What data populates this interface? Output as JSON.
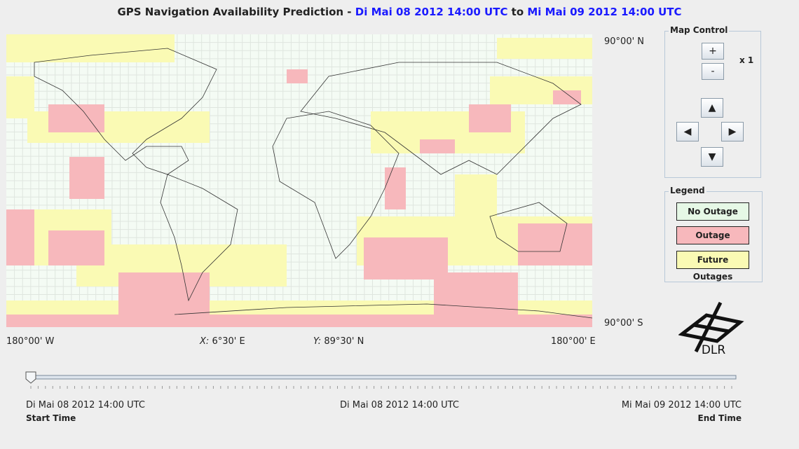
{
  "title": {
    "text": "GPS Navigation Availability Prediction - ",
    "start": "Di Mai 08 2012 14:00 UTC",
    "to": " to ",
    "end": "Mi Mai 09 2012 14:00 UTC"
  },
  "map": {
    "lat_top": "90°00' N",
    "lat_bottom": "90°00' S",
    "lon_left": "180°00' W",
    "lon_right": "180°00' E",
    "x_label": "X:",
    "x_value": "6°30' E",
    "y_label": "Y:",
    "y_value": "89°30' N"
  },
  "map_control": {
    "title": "Map Control",
    "zoom_in": "+",
    "zoom_out": "-",
    "zoom_level": "x 1",
    "up": "▲",
    "left": "◀",
    "right": "▶",
    "down": "▼"
  },
  "legend": {
    "title": "Legend",
    "items": [
      "No Outage",
      "Outage",
      "Future Outages"
    ]
  },
  "logo": "DLR",
  "time_slider": {
    "start": "Di Mai 08 2012 14:00 UTC",
    "start_caption": "Start Time",
    "current": "Di Mai 08 2012 14:00 UTC",
    "end": "Mi Mai 09 2012 14:00 UTC",
    "end_caption": "End Time"
  }
}
